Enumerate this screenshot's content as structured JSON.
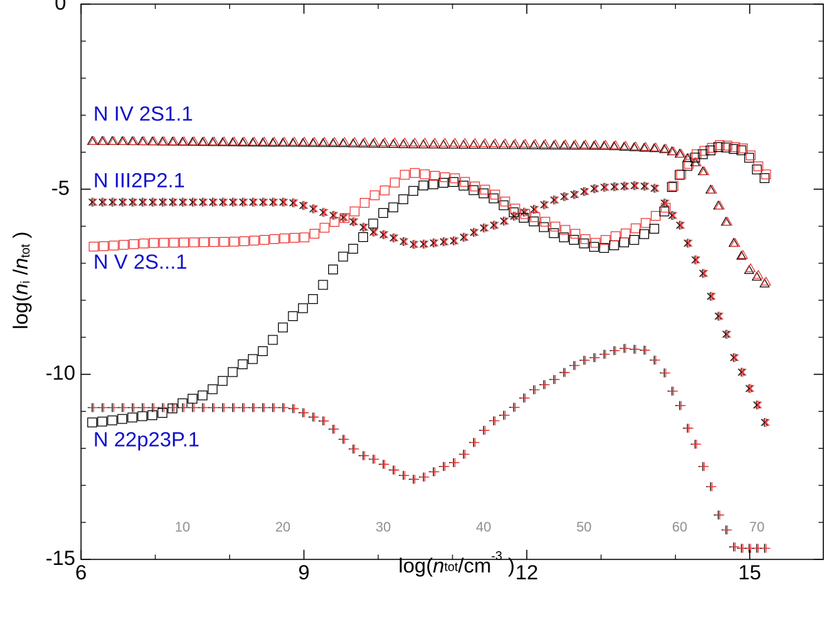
{
  "chart_data": {
    "type": "scatter",
    "title": "",
    "xlabel": {
      "prefix": "log(",
      "var": "n",
      "sub": "tot",
      "unit": "/cm",
      "sup": "-3",
      "suffix": " )"
    },
    "ylabel": {
      "prefix": "log(",
      "var": "n",
      "sub": "i",
      "mid": " /",
      "var2": "n",
      "sub2": "tot",
      "suffix": " )"
    },
    "xlim": [
      6,
      16
    ],
    "ylim": [
      -15,
      0
    ],
    "x_ticks": [
      6,
      9,
      12,
      15
    ],
    "x_tick_labels": [
      "6",
      "9",
      "12",
      "15"
    ],
    "y_ticks": [
      0,
      -5,
      -10,
      -15
    ],
    "y_tick_labels": [
      "0",
      "-5",
      "-10",
      "-15"
    ],
    "grid": false,
    "point_count": 71,
    "series_labels": [
      {
        "text": "N IV 2S1.1",
        "y": -3.0
      },
      {
        "text": "N III2P2.1",
        "y": -4.8
      },
      {
        "text": "N V 2S...1",
        "y": -7.0
      },
      {
        "text": "N 22p23P.1",
        "y": -11.8
      }
    ],
    "index_labels": [
      "10",
      "20",
      "30",
      "40",
      "50",
      "60",
      "70"
    ],
    "colors": {
      "model_a": "#000000",
      "model_b": "#ee3333",
      "labels": "#1010cc",
      "index": "#909090"
    },
    "series": [
      {
        "name": "N IV 2S1.1",
        "marker": "triangle",
        "anchors_black": [
          [
            6.15,
            -3.7
          ],
          [
            9.0,
            -3.75
          ],
          [
            11.0,
            -3.8
          ],
          [
            13.0,
            -3.83
          ],
          [
            13.8,
            -3.9
          ],
          [
            14.0,
            -4.0
          ],
          [
            14.3,
            -4.3
          ],
          [
            14.6,
            -5.5
          ],
          [
            14.8,
            -6.5
          ],
          [
            15.0,
            -7.2
          ],
          [
            15.2,
            -7.55
          ]
        ],
        "anchors_red": [
          [
            6.15,
            -3.7
          ],
          [
            9.0,
            -3.72
          ],
          [
            11.0,
            -3.75
          ],
          [
            13.0,
            -3.8
          ],
          [
            13.8,
            -3.88
          ],
          [
            14.0,
            -4.0
          ],
          [
            14.3,
            -4.3
          ],
          [
            14.6,
            -5.5
          ],
          [
            14.8,
            -6.5
          ],
          [
            15.0,
            -7.15
          ],
          [
            15.2,
            -7.5
          ]
        ]
      },
      {
        "name": "N III2P2.1",
        "marker": "asterisk",
        "anchors_black": [
          [
            6.15,
            -5.35
          ],
          [
            8.8,
            -5.35
          ],
          [
            9.5,
            -5.75
          ],
          [
            10.0,
            -6.2
          ],
          [
            10.5,
            -6.5
          ],
          [
            11.0,
            -6.4
          ],
          [
            11.5,
            -6.0
          ],
          [
            12.0,
            -5.6
          ],
          [
            12.5,
            -5.2
          ],
          [
            13.0,
            -4.95
          ],
          [
            13.5,
            -4.9
          ],
          [
            13.7,
            -4.95
          ],
          [
            14.0,
            -5.8
          ],
          [
            14.3,
            -7.0
          ],
          [
            14.6,
            -8.5
          ],
          [
            14.8,
            -9.6
          ],
          [
            15.0,
            -10.4
          ],
          [
            15.2,
            -11.3
          ]
        ],
        "anchors_red": [
          [
            6.15,
            -5.35
          ],
          [
            8.8,
            -5.35
          ],
          [
            9.5,
            -5.75
          ],
          [
            10.0,
            -6.2
          ],
          [
            10.5,
            -6.5
          ],
          [
            11.0,
            -6.4
          ],
          [
            11.5,
            -6.0
          ],
          [
            12.0,
            -5.6
          ],
          [
            12.5,
            -5.2
          ],
          [
            13.0,
            -4.95
          ],
          [
            13.5,
            -4.9
          ],
          [
            13.7,
            -4.95
          ],
          [
            14.0,
            -5.8
          ],
          [
            14.3,
            -7.0
          ],
          [
            14.6,
            -8.5
          ],
          [
            14.8,
            -9.6
          ],
          [
            15.0,
            -10.4
          ],
          [
            15.2,
            -11.3
          ]
        ]
      },
      {
        "name": "N V 2S...1",
        "marker": "square",
        "anchors_black": [
          [
            6.15,
            -11.3
          ],
          [
            7.0,
            -11.1
          ],
          [
            7.6,
            -10.6
          ],
          [
            8.3,
            -9.6
          ],
          [
            9.0,
            -8.2
          ],
          [
            9.6,
            -6.7
          ],
          [
            10.1,
            -5.6
          ],
          [
            10.6,
            -4.9
          ],
          [
            11.0,
            -4.8
          ],
          [
            11.4,
            -5.1
          ],
          [
            12.0,
            -5.8
          ],
          [
            12.5,
            -6.3
          ],
          [
            13.0,
            -6.6
          ],
          [
            13.4,
            -6.4
          ],
          [
            13.7,
            -6.1
          ],
          [
            13.85,
            -5.6
          ],
          [
            14.0,
            -4.7
          ],
          [
            14.3,
            -4.1
          ],
          [
            14.6,
            -3.85
          ],
          [
            14.9,
            -3.95
          ],
          [
            15.2,
            -4.7
          ]
        ],
        "anchors_red": [
          [
            6.15,
            -6.55
          ],
          [
            7.0,
            -6.45
          ],
          [
            8.0,
            -6.42
          ],
          [
            9.0,
            -6.3
          ],
          [
            9.5,
            -5.8
          ],
          [
            10.0,
            -5.1
          ],
          [
            10.4,
            -4.55
          ],
          [
            11.0,
            -4.7
          ],
          [
            11.4,
            -5.0
          ],
          [
            12.0,
            -5.7
          ],
          [
            12.5,
            -6.1
          ],
          [
            12.9,
            -6.45
          ],
          [
            13.3,
            -6.2
          ],
          [
            13.6,
            -5.9
          ],
          [
            13.85,
            -5.5
          ],
          [
            14.0,
            -4.7
          ],
          [
            14.3,
            -4.0
          ],
          [
            14.6,
            -3.8
          ],
          [
            14.9,
            -3.9
          ],
          [
            15.2,
            -4.6
          ]
        ]
      },
      {
        "name": "N 22p23P.1",
        "marker": "plus",
        "anchors_black": [
          [
            6.15,
            -10.9
          ],
          [
            8.8,
            -10.9
          ],
          [
            9.2,
            -11.2
          ],
          [
            9.8,
            -12.2
          ],
          [
            10.5,
            -12.85
          ],
          [
            11.0,
            -12.4
          ],
          [
            11.6,
            -11.2
          ],
          [
            12.2,
            -10.3
          ],
          [
            12.8,
            -9.6
          ],
          [
            13.3,
            -9.3
          ],
          [
            13.6,
            -9.35
          ],
          [
            13.8,
            -9.8
          ],
          [
            14.0,
            -10.6
          ],
          [
            14.2,
            -11.6
          ],
          [
            14.4,
            -12.6
          ],
          [
            14.6,
            -13.9
          ],
          [
            14.8,
            -14.7
          ]
        ],
        "anchors_red": [
          [
            6.15,
            -10.9
          ],
          [
            8.8,
            -10.9
          ],
          [
            9.2,
            -11.2
          ],
          [
            9.8,
            -12.2
          ],
          [
            10.5,
            -12.85
          ],
          [
            11.0,
            -12.4
          ],
          [
            11.6,
            -11.2
          ],
          [
            12.2,
            -10.3
          ],
          [
            12.8,
            -9.6
          ],
          [
            13.3,
            -9.3
          ],
          [
            13.6,
            -9.35
          ],
          [
            13.8,
            -9.8
          ],
          [
            14.0,
            -10.6
          ],
          [
            14.2,
            -11.6
          ],
          [
            14.4,
            -12.6
          ],
          [
            14.6,
            -13.9
          ],
          [
            14.8,
            -14.7
          ]
        ]
      }
    ]
  }
}
